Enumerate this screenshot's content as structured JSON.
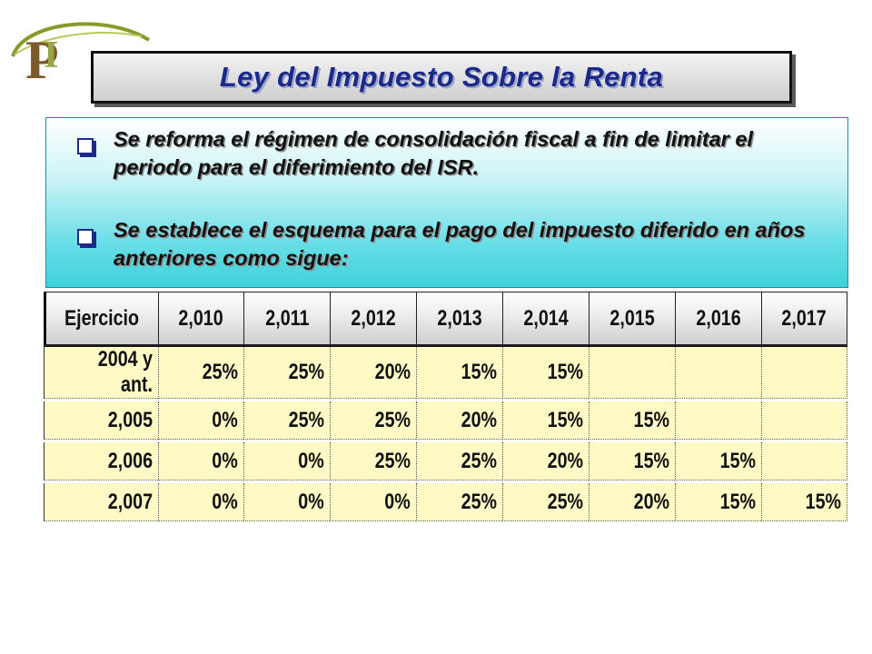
{
  "title": "Ley del Impuesto Sobre la Renta",
  "bullets": [
    "Se reforma el régimen de consolidación fiscal a fin de limitar el periodo para el diferimiento del ISR.",
    "Se establece el esquema para el pago del impuesto diferido en años anteriores como sigue:"
  ],
  "icons": {
    "logo": "p-logo-icon",
    "bullet": "checkbox-bullet-icon"
  },
  "colors": {
    "title": "#1b2a8a",
    "table_cells": "#fff9c6",
    "bullet_bg": "#3fd2db"
  },
  "table": {
    "headers": [
      "Ejercicio",
      "2,010",
      "2,011",
      "2,012",
      "2,013",
      "2,014",
      "2,015",
      "2,016",
      "2,017"
    ],
    "rows": [
      [
        "2004 y ant.",
        "25%",
        "25%",
        "20%",
        "15%",
        "15%",
        "",
        "",
        ""
      ],
      [
        "2,005",
        "0%",
        "25%",
        "25%",
        "20%",
        "15%",
        "15%",
        "",
        ""
      ],
      [
        "2,006",
        "0%",
        "0%",
        "25%",
        "25%",
        "20%",
        "15%",
        "15%",
        ""
      ],
      [
        "2,007",
        "0%",
        "0%",
        "0%",
        "25%",
        "25%",
        "20%",
        "15%",
        "15%"
      ]
    ]
  }
}
